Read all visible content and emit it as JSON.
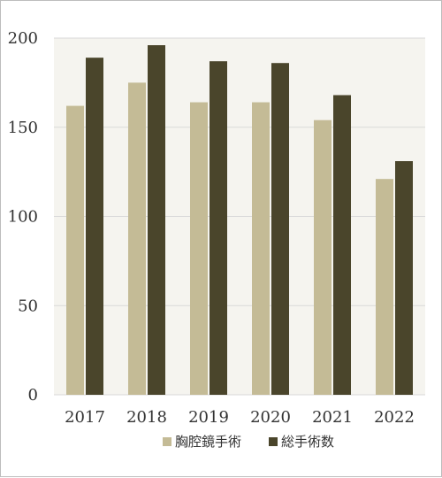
{
  "chart_data": {
    "type": "bar",
    "categories": [
      "2017",
      "2018",
      "2019",
      "2020",
      "2021",
      "2022"
    ],
    "series": [
      {
        "name": "胸腔鏡手術",
        "values": [
          162,
          175,
          164,
          164,
          154,
          121
        ],
        "color": "#c4bb96"
      },
      {
        "name": "総手術数",
        "values": [
          189,
          196,
          187,
          186,
          168,
          131
        ],
        "color": "#4a452b"
      }
    ],
    "yticks": [
      0,
      50,
      100,
      150,
      200
    ],
    "ylim": [
      0,
      200
    ],
    "grid": true,
    "legend": "bottom",
    "plot_background": "#f5f4ef",
    "grid_color": "#d9d9d9"
  }
}
